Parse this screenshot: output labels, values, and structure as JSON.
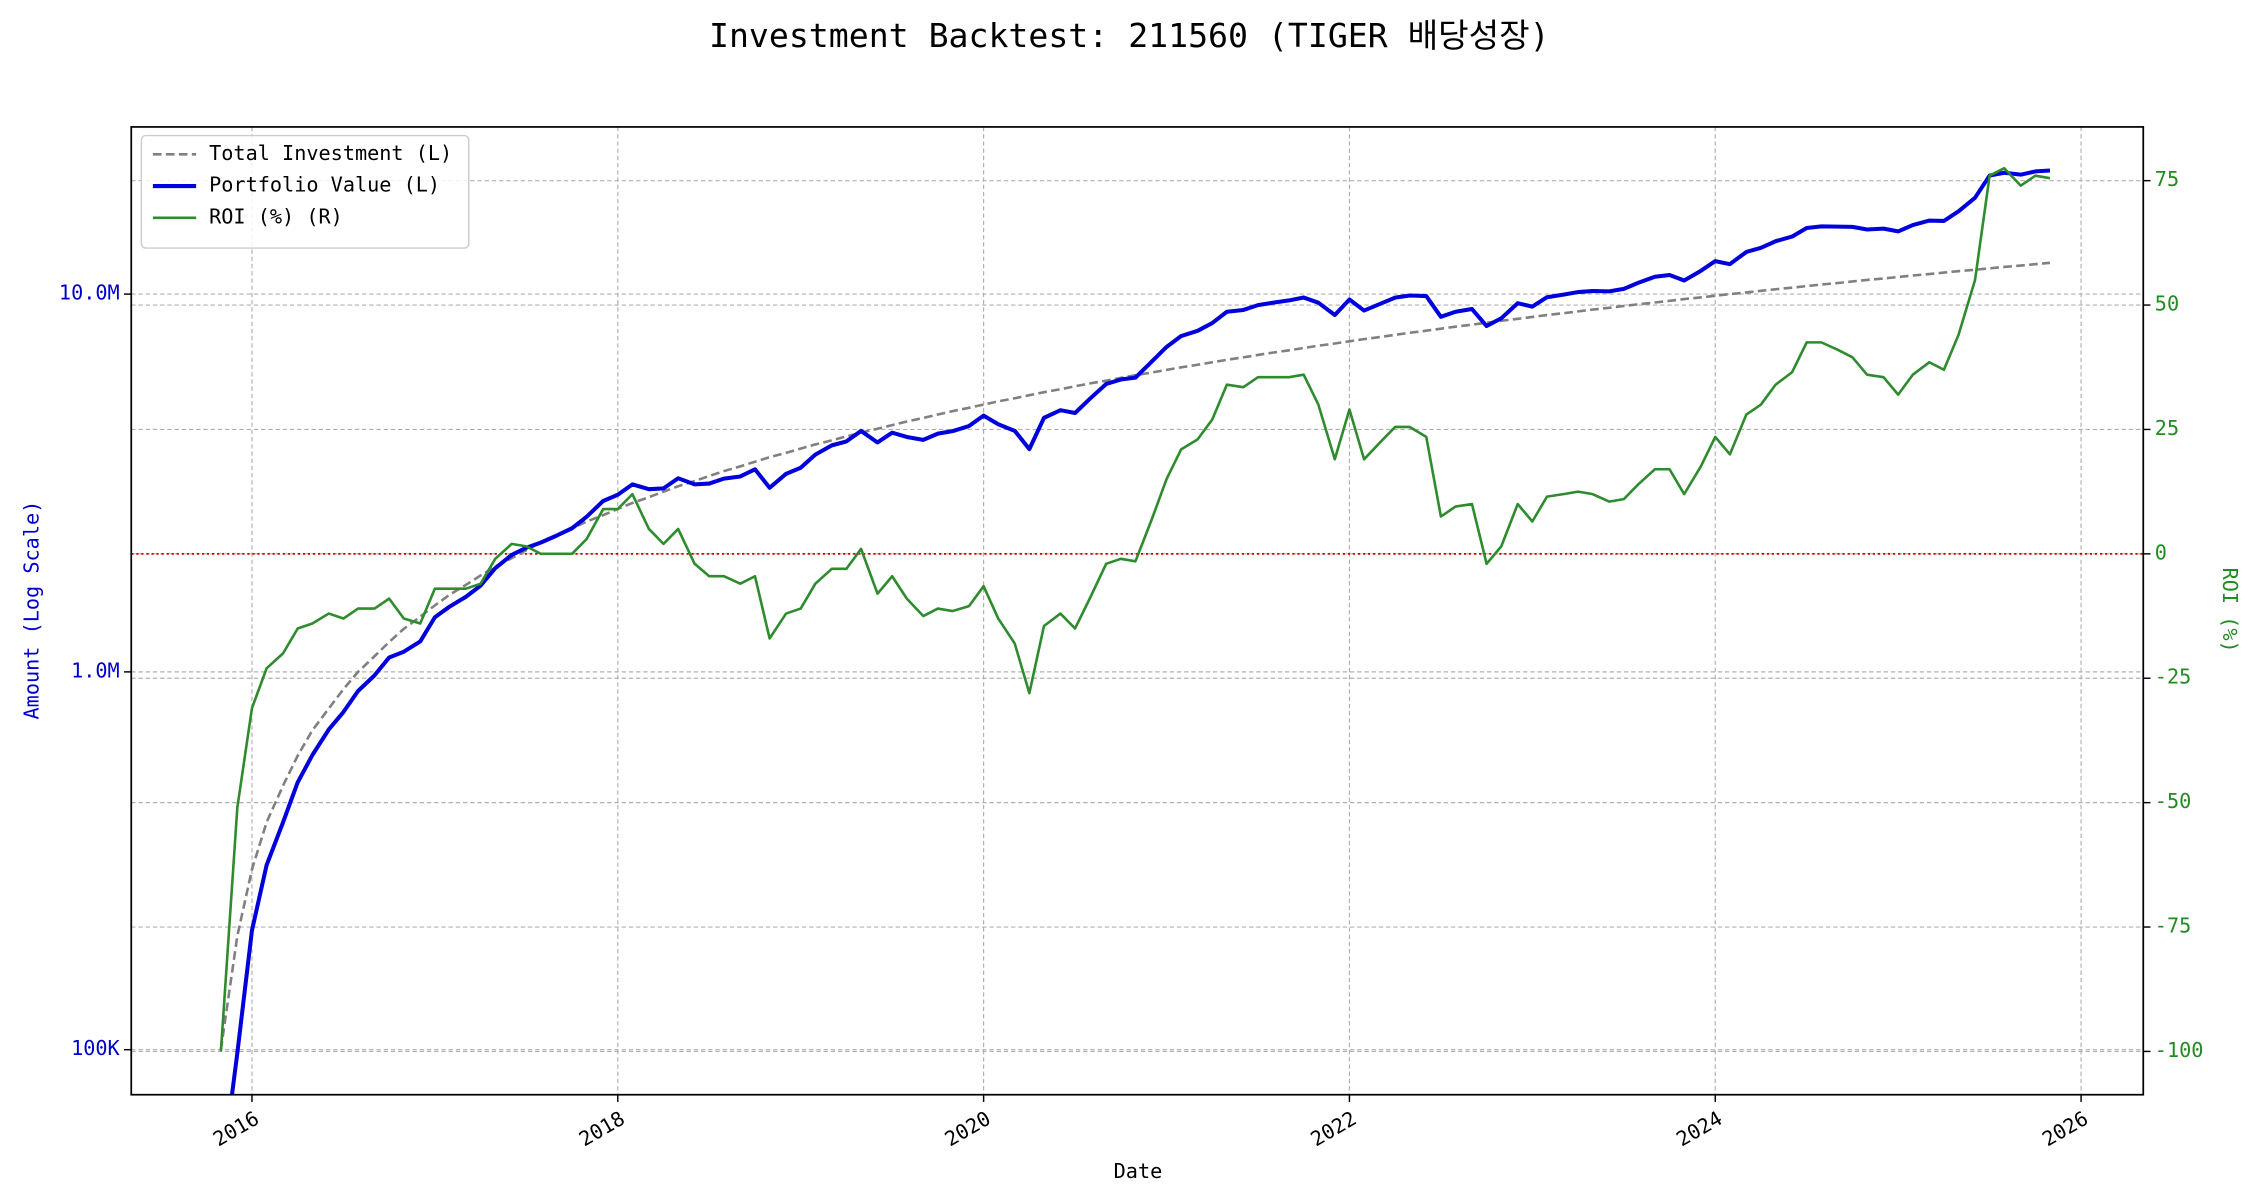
{
  "chart_data": {
    "type": "line",
    "title": "Investment Backtest: 211560 (TIGER 배당성장)",
    "xlabel": "Date",
    "ylabel": "Amount (Log Scale)",
    "y2label": "ROI (%)",
    "ylabel_color": "#0000cc",
    "y2label_color": "#228b22",
    "log_y": true,
    "grid": true,
    "legend": "upper left",
    "xlim": [
      2015.34,
      2026.34
    ],
    "xticks": [
      2016,
      2018,
      2020,
      2022,
      2024,
      2026
    ],
    "ylim": [
      76000,
      27700000
    ],
    "yticks": [
      {
        "value": 100000,
        "label": "100K"
      },
      {
        "value": 1000000,
        "label": "1.0M"
      },
      {
        "value": 10000000,
        "label": "10.0M"
      }
    ],
    "y2lim": [
      -108.7,
      85.8
    ],
    "y2ticks": [
      -100,
      -75,
      -50,
      -25,
      0,
      25,
      50,
      75
    ],
    "hlines": [
      {
        "y": 0,
        "axis": "y2",
        "color": "#cc0000",
        "style": "dotted"
      }
    ],
    "x": [
      2015.83,
      2015.92,
      2016,
      2016.08,
      2016.17,
      2016.25,
      2016.33,
      2016.42,
      2016.5,
      2016.58,
      2016.67,
      2016.75,
      2016.83,
      2016.92,
      2017,
      2017.08,
      2017.17,
      2017.25,
      2017.33,
      2017.42,
      2017.5,
      2017.58,
      2017.67,
      2017.75,
      2017.83,
      2017.92,
      2018,
      2018.08,
      2018.17,
      2018.25,
      2018.33,
      2018.42,
      2018.5,
      2018.58,
      2018.67,
      2018.75,
      2018.83,
      2018.92,
      2019,
      2019.08,
      2019.17,
      2019.25,
      2019.33,
      2019.42,
      2019.5,
      2019.58,
      2019.67,
      2019.75,
      2019.83,
      2019.92,
      2020,
      2020.08,
      2020.17,
      2020.25,
      2020.33,
      2020.42,
      2020.5,
      2020.58,
      2020.67,
      2020.75,
      2020.83,
      2020.92,
      2021,
      2021.08,
      2021.17,
      2021.25,
      2021.33,
      2021.42,
      2021.5,
      2021.58,
      2021.67,
      2021.75,
      2021.83,
      2021.92,
      2022,
      2022.08,
      2022.17,
      2022.25,
      2022.33,
      2022.42,
      2022.5,
      2022.58,
      2022.67,
      2022.75,
      2022.83,
      2022.92,
      2023,
      2023.08,
      2023.17,
      2023.25,
      2023.33,
      2023.42,
      2023.5,
      2023.58,
      2023.67,
      2023.75,
      2023.83,
      2023.92,
      2024,
      2024.08,
      2024.17,
      2024.25,
      2024.33,
      2024.42,
      2024.5,
      2024.58,
      2024.67,
      2024.75,
      2024.83,
      2024.92,
      2025,
      2025.08,
      2025.17,
      2025.25,
      2025.33,
      2025.42,
      2025.5,
      2025.58,
      2025.67,
      2025.75,
      2025.83
    ],
    "series": [
      {
        "name": "Total Investment (L)",
        "color": "#808080",
        "style": "dashed",
        "width": 1.8,
        "axis": "y",
        "values": [
          100000,
          200000,
          300000,
          400000,
          500000,
          600000,
          700000,
          800000,
          900000,
          1000000,
          1100000,
          1200000,
          1300000,
          1400000,
          1500000,
          1600000,
          1700000,
          1800000,
          1900000,
          2000000,
          2100000,
          2200000,
          2300000,
          2400000,
          2500000,
          2600000,
          2700000,
          2800000,
          2900000,
          3000000,
          3100000,
          3200000,
          3300000,
          3400000,
          3500000,
          3600000,
          3700000,
          3800000,
          3900000,
          4000000,
          4100000,
          4200000,
          4300000,
          4400000,
          4500000,
          4600000,
          4700000,
          4800000,
          4900000,
          5000000,
          5100000,
          5200000,
          5300000,
          5400000,
          5500000,
          5600000,
          5700000,
          5800000,
          5900000,
          6000000,
          6100000,
          6200000,
          6300000,
          6400000,
          6500000,
          6600000,
          6700000,
          6800000,
          6900000,
          7000000,
          7100000,
          7200000,
          7300000,
          7400000,
          7500000,
          7600000,
          7700000,
          7800000,
          7900000,
          8000000,
          8100000,
          8200000,
          8300000,
          8400000,
          8500000,
          8600000,
          8700000,
          8800000,
          8900000,
          9000000,
          9100000,
          9200000,
          9300000,
          9400000,
          9500000,
          9600000,
          9700000,
          9800000,
          9900000,
          10000000,
          10100000,
          10200000,
          10300000,
          10400000,
          10500000,
          10600000,
          10700000,
          10800000,
          10900000,
          11000000,
          11100000,
          11200000,
          11300000,
          11400000,
          11500000,
          11600000,
          11700000,
          11800000,
          11900000,
          12000000,
          12100000
        ]
      },
      {
        "name": "Portfolio Value (L)",
        "color": "#0000dd",
        "style": "solid",
        "width": 2.8,
        "axis": "y",
        "values": [
          0,
          98000,
          207000,
          308000,
          400000,
          510000,
          602000,
          704000,
          783000,
          890000,
          979000,
          1092000,
          1131000,
          1204000,
          1395000,
          1488000,
          1581000,
          1692000,
          1881000,
          2040000,
          2131500,
          2200000,
          2300000,
          2400000,
          2575000,
          2834000,
          2943000,
          3136000,
          3045000,
          3060000,
          3255000,
          3136000,
          3151500,
          3247000,
          3290000,
          3438000,
          3071000,
          3344000,
          3471000,
          3760000,
          3977000,
          4074000,
          4343000,
          4048000,
          4297500,
          4186000,
          4112500,
          4272000,
          4336500,
          4475000,
          4768500,
          4524000,
          4346000,
          3888000,
          4702500,
          4928000,
          4845000,
          5278000,
          5782000,
          5940000,
          6008500,
          6634000,
          7245000,
          7744000,
          7995000,
          8382000,
          8978000,
          9078000,
          9349500,
          9485000,
          9620500,
          9792000,
          9490000,
          8806000,
          9675000,
          9044000,
          9432500,
          9789000,
          9914500,
          9880000,
          8707500,
          8979000,
          9130000,
          8232000,
          8627500,
          9460000,
          9265500,
          9812000,
          9968000,
          10125000,
          10192000,
          10166000,
          10323000,
          10716000,
          11115000,
          11232000,
          10864000,
          11515000,
          12226500,
          12000000,
          12928000,
          13260000,
          13802000,
          14196000,
          14962500,
          15105000,
          15087000,
          15066000,
          14824000,
          14905000,
          14652000,
          15232000,
          15650500,
          15618000,
          16560000,
          17980000,
          20592000,
          20945000,
          20706000,
          21120000,
          21235500
        ]
      },
      {
        "name": "ROI (%) (R)",
        "color": "#2e8b2e",
        "style": "solid",
        "width": 1.8,
        "axis": "y2",
        "values": [
          -100,
          -51,
          -31,
          -23,
          -20,
          -15,
          -14,
          -12,
          -13,
          -11,
          -11,
          -9,
          -13,
          -14,
          -7,
          -7,
          -7,
          -6,
          -1,
          2,
          1.5,
          0,
          0,
          0,
          3,
          9,
          9,
          12,
          5,
          2,
          5,
          -2,
          -4.5,
          -4.5,
          -6,
          -4.5,
          -17,
          -12,
          -11,
          -6,
          -3,
          -3,
          1,
          -8,
          -4.5,
          -9,
          -12.5,
          -11,
          -11.5,
          -10.5,
          -6.5,
          -13,
          -18,
          -28,
          -14.5,
          -12,
          -15,
          -9,
          -2,
          -1,
          -1.5,
          7,
          15,
          21,
          23,
          27,
          34,
          33.5,
          35.5,
          35.5,
          35.5,
          36,
          30,
          19,
          29,
          19,
          22.5,
          25.5,
          25.5,
          23.5,
          7.5,
          9.5,
          10,
          -2,
          1.5,
          10,
          6.5,
          11.5,
          12,
          12.5,
          12,
          10.5,
          11,
          14,
          17,
          17,
          12,
          17.5,
          23.5,
          20,
          28,
          30,
          34,
          36.5,
          42.5,
          42.5,
          41,
          39.5,
          36,
          35.5,
          32,
          36,
          38.5,
          37,
          44,
          55,
          76,
          77.5,
          74,
          76,
          75.5
        ]
      }
    ]
  }
}
